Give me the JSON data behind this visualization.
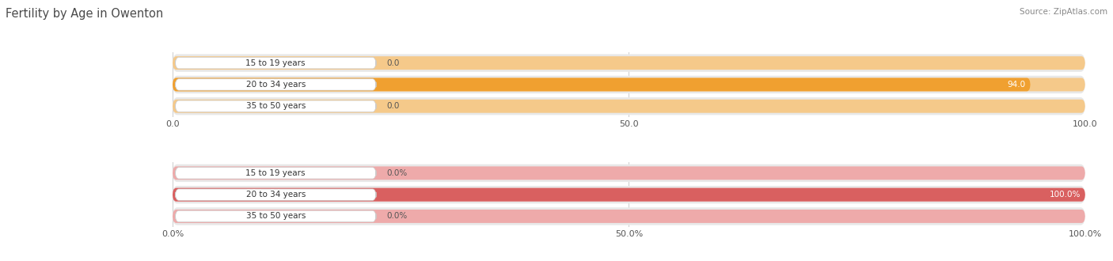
{
  "title": "Fertility by Age in Owenton",
  "source": "Source: ZipAtlas.com",
  "title_color": "#4a4a4a",
  "title_fontsize": 10.5,
  "background_color": "#ffffff",
  "row_bg_color": "#e8e8e8",
  "top_chart": {
    "categories": [
      "15 to 19 years",
      "20 to 34 years",
      "35 to 50 years"
    ],
    "values": [
      0.0,
      94.0,
      0.0
    ],
    "xlim": [
      0,
      100
    ],
    "xticks": [
      0.0,
      50.0,
      100.0
    ],
    "xtick_labels": [
      "0.0",
      "50.0",
      "100.0"
    ],
    "bar_color_full": "#f0a030",
    "bar_color_empty": "#f5c98a",
    "label_inside_color": "#ffffff",
    "label_outside_color": "#555555",
    "value_label_threshold": 90
  },
  "bottom_chart": {
    "categories": [
      "15 to 19 years",
      "20 to 34 years",
      "35 to 50 years"
    ],
    "values": [
      0.0,
      100.0,
      0.0
    ],
    "xlim": [
      0,
      100
    ],
    "xticks": [
      0.0,
      50.0,
      100.0
    ],
    "xtick_labels": [
      "0.0%",
      "50.0%",
      "100.0%"
    ],
    "bar_color_full": "#d96060",
    "bar_color_empty": "#eeaaaa",
    "label_inside_color": "#ffffff",
    "label_outside_color": "#555555",
    "value_label_threshold": 90
  }
}
